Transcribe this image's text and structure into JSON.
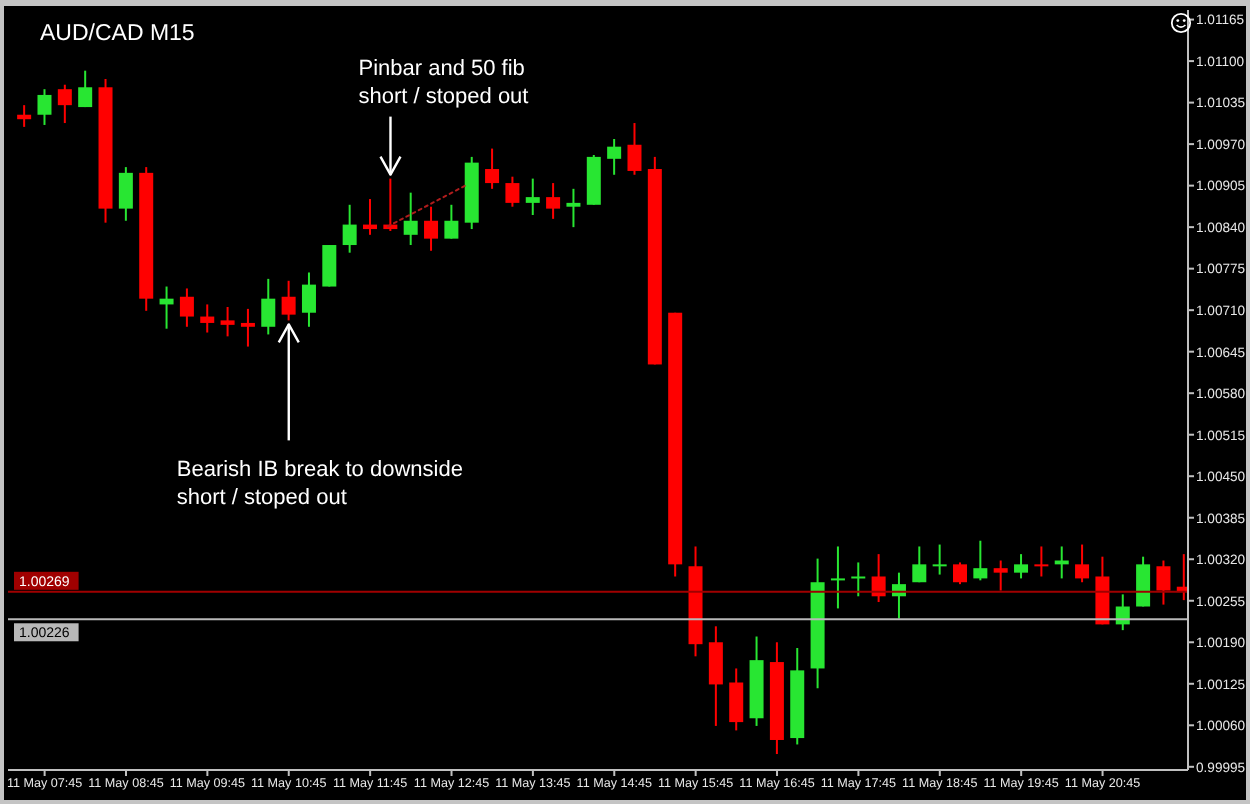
{
  "chart_data": {
    "type": "candlestick",
    "title": "AUD/CAD M15",
    "x": [
      "--05-11T07:30",
      "--05-11T07:45",
      "--05-11T08:00",
      "--05-11T08:15",
      "--05-11T08:30",
      "--05-11T08:45",
      "--05-11T09:00",
      "--05-11T09:15",
      "--05-11T09:30",
      "--05-11T09:45",
      "--05-11T10:00",
      "--05-11T10:15",
      "--05-11T10:30",
      "--05-11T10:45",
      "--05-11T11:00",
      "--05-11T11:15",
      "--05-11T11:30",
      "--05-11T11:45",
      "--05-11T12:00",
      "--05-11T12:15",
      "--05-11T12:30",
      "--05-11T12:45",
      "--05-11T13:00",
      "--05-11T13:15",
      "--05-11T13:30",
      "--05-11T13:45",
      "--05-11T14:00",
      "--05-11T14:15",
      "--05-11T14:30",
      "--05-11T14:45",
      "--05-11T15:00",
      "--05-11T15:15",
      "--05-11T15:30",
      "--05-11T15:45",
      "--05-11T16:00",
      "--05-11T16:15",
      "--05-11T16:30",
      "--05-11T16:45",
      "--05-11T17:00",
      "--05-11T17:15",
      "--05-11T17:30",
      "--05-11T17:45",
      "--05-11T18:00",
      "--05-11T18:15",
      "--05-11T18:30",
      "--05-11T18:45",
      "--05-11T19:00",
      "--05-11T19:15",
      "--05-11T19:30",
      "--05-11T19:45",
      "--05-11T20:00",
      "--05-11T20:15",
      "--05-11T20:30",
      "--05-11T20:45",
      "--05-11T21:00",
      "--05-11T21:15",
      "--05-11T21:30",
      "--05-11T21:45"
    ],
    "ohlc": [
      [
        1.01016,
        1.01031,
        1.00997,
        1.01009
      ],
      [
        1.01016,
        1.01056,
        1.01,
        1.01047
      ],
      [
        1.01056,
        1.01063,
        1.01003,
        1.01031
      ],
      [
        1.01028,
        1.01085,
        1.01028,
        1.01059
      ],
      [
        1.01059,
        1.01072,
        1.00847,
        1.00869
      ],
      [
        1.00869,
        1.00934,
        1.0085,
        1.00925
      ],
      [
        1.00925,
        1.00934,
        1.00709,
        1.00728
      ],
      [
        1.00719,
        1.00747,
        1.00681,
        1.00728
      ],
      [
        1.00731,
        1.00744,
        1.00684,
        1.007
      ],
      [
        1.007,
        1.00719,
        1.00675,
        1.0069
      ],
      [
        1.00694,
        1.00715,
        1.00669,
        1.00687
      ],
      [
        1.0069,
        1.00712,
        1.00653,
        1.00684
      ],
      [
        1.00684,
        1.00759,
        1.00672,
        1.00728
      ],
      [
        1.00731,
        1.00756,
        1.00694,
        1.00703
      ],
      [
        1.00706,
        1.00769,
        1.00684,
        1.0075
      ],
      [
        1.00747,
        1.00812,
        1.00747,
        1.00812
      ],
      [
        1.00812,
        1.00875,
        1.008,
        1.00844
      ],
      [
        1.00844,
        1.00884,
        1.00828,
        1.00837
      ],
      [
        1.00844,
        1.00916,
        1.00834,
        1.00837
      ],
      [
        1.00828,
        1.00894,
        1.00812,
        1.0085
      ],
      [
        1.0085,
        1.00872,
        1.00803,
        1.00822
      ],
      [
        1.00822,
        1.00875,
        1.00822,
        1.0085
      ],
      [
        1.00847,
        1.0095,
        1.00837,
        1.00941
      ],
      [
        1.00931,
        1.00963,
        1.009,
        1.00909
      ],
      [
        1.00909,
        1.00919,
        1.00872,
        1.00878
      ],
      [
        1.00878,
        1.00916,
        1.00859,
        1.00887
      ],
      [
        1.00887,
        1.00909,
        1.00853,
        1.00869
      ],
      [
        1.00872,
        1.009,
        1.0084,
        1.00878
      ],
      [
        1.00875,
        1.00953,
        1.00875,
        1.0095
      ],
      [
        1.00947,
        1.00978,
        1.00922,
        1.00966
      ],
      [
        1.00969,
        1.01003,
        1.00922,
        1.00928
      ],
      [
        1.00931,
        1.0095,
        1.00625,
        1.00625
      ],
      [
        1.00706,
        1.00706,
        1.00293,
        1.00312
      ],
      [
        1.00309,
        1.0034,
        1.00168,
        1.00187
      ],
      [
        1.0019,
        1.00215,
        1.00059,
        1.00124
      ],
      [
        1.00127,
        1.00149,
        1.00052,
        1.00065
      ],
      [
        1.00071,
        1.00199,
        1.00059,
        1.00162
      ],
      [
        1.00159,
        1.0019,
        1.00015,
        1.00037
      ],
      [
        1.0004,
        1.00181,
        1.0003,
        1.00146
      ],
      [
        1.00149,
        1.00321,
        1.00118,
        1.00284
      ],
      [
        1.00287,
        1.0034,
        1.00243,
        1.0029
      ],
      [
        1.0029,
        1.00315,
        1.00262,
        1.00293
      ],
      [
        1.00293,
        1.00328,
        1.00253,
        1.00262
      ],
      [
        1.00262,
        1.00299,
        1.00227,
        1.00281
      ],
      [
        1.00284,
        1.0034,
        1.00284,
        1.00312
      ],
      [
        1.00309,
        1.00343,
        1.00296,
        1.00312
      ],
      [
        1.00312,
        1.00315,
        1.00281,
        1.00284
      ],
      [
        1.0029,
        1.00349,
        1.00287,
        1.00306
      ],
      [
        1.00306,
        1.00318,
        1.00271,
        1.00299
      ],
      [
        1.00299,
        1.00328,
        1.0029,
        1.00312
      ],
      [
        1.00312,
        1.0034,
        1.00293,
        1.00309
      ],
      [
        1.00312,
        1.0034,
        1.0029,
        1.00318
      ],
      [
        1.00312,
        1.00343,
        1.00284,
        1.0029
      ],
      [
        1.00293,
        1.00324,
        1.00218,
        1.00218
      ],
      [
        1.00218,
        1.00265,
        1.00209,
        1.00246
      ],
      [
        1.00246,
        1.00324,
        1.00246,
        1.00312
      ],
      [
        1.00309,
        1.00318,
        1.00249,
        1.00271
      ],
      [
        1.00277,
        1.00328,
        1.00256,
        1.00269
      ]
    ],
    "colors": [
      "#ff0000",
      "#28e632",
      "#ff0000",
      "#28e632",
      "#ff0000",
      "#28e632",
      "#ff0000",
      "#28e632",
      "#ff0000",
      "#ff0000",
      "#ff0000",
      "#ff0000",
      "#28e632",
      "#ff0000",
      "#28e632",
      "#28e632",
      "#28e632",
      "#ff0000",
      "#ff0000",
      "#28e632",
      "#ff0000",
      "#28e632",
      "#28e632",
      "#ff0000",
      "#ff0000",
      "#28e632",
      "#ff0000",
      "#28e632",
      "#28e632",
      "#28e632",
      "#ff0000",
      "#ff0000",
      "#ff0000",
      "#ff0000",
      "#ff0000",
      "#ff0000",
      "#28e632",
      "#ff0000",
      "#28e632",
      "#28e632",
      "#28e632",
      "#28e632",
      "#ff0000",
      "#28e632",
      "#28e632",
      "#28e632",
      "#ff0000",
      "#28e632",
      "#ff0000",
      "#28e632",
      "#ff0000",
      "#28e632",
      "#ff0000",
      "#ff0000",
      "#28e632",
      "#28e632",
      "#ff0000",
      "#ff0000"
    ],
    "series": [
      {
        "type": "line",
        "x": [
          "--05-11T11:58",
          "--05-11T12:56"
        ],
        "values": [
          1.00841,
          1.00906
        ],
        "color": "#b01c1c",
        "line_style": "dotted",
        "marker": "none"
      }
    ],
    "xlim": [
      "--05-11T07:18",
      "--05-11T21:48"
    ],
    "xticks": [
      {
        "value": "--05-11T07:45",
        "label": "11 May 07:45"
      },
      {
        "value": "--05-11T08:45",
        "label": "11 May 08:45"
      },
      {
        "value": "--05-11T09:45",
        "label": "11 May 09:45"
      },
      {
        "value": "--05-11T10:45",
        "label": "11 May 10:45"
      },
      {
        "value": "--05-11T11:45",
        "label": "11 May 11:45"
      },
      {
        "value": "--05-11T12:45",
        "label": "11 May 12:45"
      },
      {
        "value": "--05-11T13:45",
        "label": "11 May 13:45"
      },
      {
        "value": "--05-11T14:45",
        "label": "11 May 14:45"
      },
      {
        "value": "--05-11T15:45",
        "label": "11 May 15:45"
      },
      {
        "value": "--05-11T16:45",
        "label": "11 May 16:45"
      },
      {
        "value": "--05-11T17:45",
        "label": "11 May 17:45"
      },
      {
        "value": "--05-11T18:45",
        "label": "11 May 18:45"
      },
      {
        "value": "--05-11T19:45",
        "label": "11 May 19:45"
      },
      {
        "value": "--05-11T20:45",
        "label": "11 May 20:45"
      }
    ],
    "ylim": [
      0.9999,
      1.0118
    ],
    "yticks": [
      0.99995,
      {
        "value": 1.0006,
        "label": "1.00060"
      },
      1.00125,
      {
        "value": 1.0019,
        "label": "1.00190"
      },
      1.00255,
      {
        "value": 1.0032,
        "label": "1.00320"
      },
      1.00385,
      {
        "value": 1.0045,
        "label": "1.00450"
      },
      1.00515,
      {
        "value": 1.0058,
        "label": "1.00580"
      },
      1.00645,
      {
        "value": 1.0071,
        "label": "1.00710"
      },
      1.00775,
      {
        "value": 1.0084,
        "label": "1.00840"
      },
      1.00905,
      {
        "value": 1.0097,
        "label": "1.00970"
      },
      1.01035,
      {
        "value": 1.011,
        "label": "1.01100"
      },
      1.01165
    ],
    "ref_lines": [
      {
        "axis": "y",
        "value": 1.00269,
        "label": "1.00269",
        "color": "#a00000"
      },
      {
        "axis": "y",
        "value": 1.00226,
        "label": "1.00226",
        "color": "#b8b8b8"
      }
    ],
    "annotations": [
      {
        "text": "Pinbar and 50 fib\nshort / stoped out",
        "x": "--05-11T12:00",
        "y": 1.00916
      },
      {
        "text": "Bearish IB break to downside\nshort / stoped out",
        "x": "--05-11T10:45",
        "y": 1.00694
      }
    ]
  }
}
